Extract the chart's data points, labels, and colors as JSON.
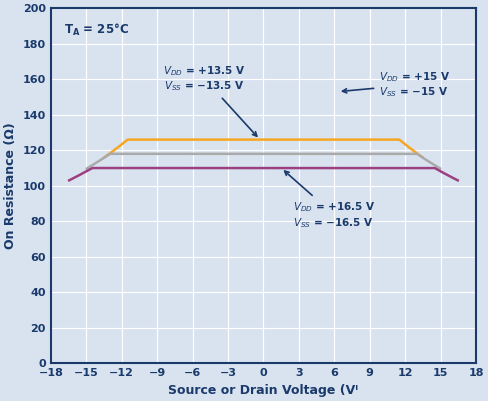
{
  "xlabel": "Source or Drain Voltage (Vᴵ",
  "ylabel": "On Resistance (Ω)",
  "xlim": [
    -18,
    18
  ],
  "ylim": [
    0,
    200
  ],
  "xticks": [
    -18,
    -15,
    -12,
    -9,
    -6,
    -3,
    0,
    3,
    6,
    9,
    12,
    15,
    18
  ],
  "yticks": [
    0,
    20,
    40,
    60,
    80,
    100,
    120,
    140,
    160,
    180,
    200
  ],
  "background_color": "#d9e3f0",
  "grid_color": "#ffffff",
  "border_color": "#1a3a6b",
  "curves": [
    {
      "label": "VDD=+13.5V",
      "color": "#f5a623",
      "vdd": 13.5
    },
    {
      "label": "VDD=+15V",
      "color": "#aaaaaa",
      "vdd": 15.0
    },
    {
      "label": "VDD=+16.5V",
      "color": "#9b4080",
      "vdd": 16.5
    }
  ]
}
